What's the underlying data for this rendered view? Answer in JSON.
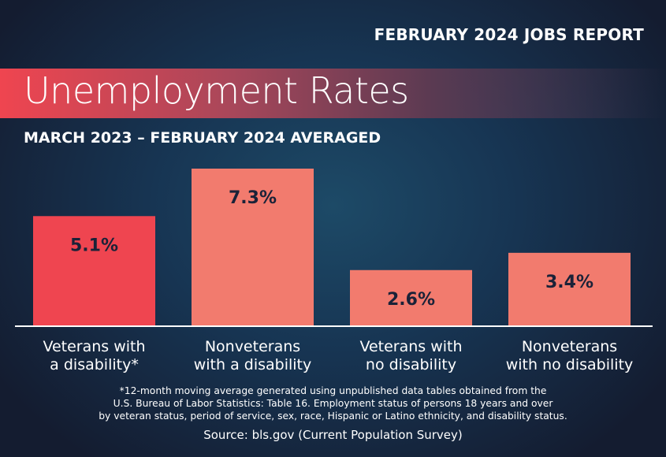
{
  "header": {
    "report": "FEBRUARY 2024 JOBS REPORT"
  },
  "chart_data": {
    "type": "bar",
    "title": "Unemployment Rates",
    "subtitle": "MARCH 2023 – FEBRUARY 2024 AVERAGED",
    "categories": [
      [
        "Veterans with",
        "a disability*"
      ],
      [
        "Nonveterans",
        "with a disability"
      ],
      [
        "Veterans with",
        "no disability"
      ],
      [
        "Nonveterans",
        "with no disability"
      ]
    ],
    "values": [
      5.1,
      7.3,
      2.6,
      3.4
    ],
    "labels": [
      "5.1%",
      "7.3%",
      "2.6%",
      "3.4%"
    ],
    "colors": [
      "#ef4550",
      "#f27b6e",
      "#f27b6e",
      "#f27b6e"
    ],
    "ylim": [
      0,
      7.3
    ],
    "grid": false
  },
  "footnote": [
    "*12-month moving average generated using unpublished data tables obtained from the",
    "U.S. Bureau of Labor Statistics: Table 16. Employment status of persons 18 years and over",
    "by veteran status, period of service, sex, race, Hispanic or Latino ethnicity, and disability status."
  ],
  "source": "Source: bls.gov (Current Population Survey)"
}
